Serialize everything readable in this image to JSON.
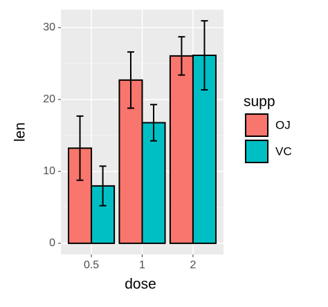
{
  "chart_data": {
    "type": "bar",
    "x_label": "dose",
    "y_label": "len",
    "legend_title": "supp",
    "legend_position": "right",
    "categories": [
      "0.5",
      "1",
      "2"
    ],
    "series": [
      {
        "name": "OJ",
        "color": "#f8766d",
        "values": [
          13.23,
          22.7,
          26.06
        ],
        "errors": [
          4.46,
          3.91,
          2.66
        ]
      },
      {
        "name": "VC",
        "color": "#00bfc4",
        "values": [
          7.98,
          16.77,
          26.14
        ],
        "errors": [
          2.75,
          2.52,
          4.8
        ]
      }
    ],
    "ylim": [
      -1.55,
      32.49
    ],
    "yticks": [
      0,
      10,
      20,
      30
    ],
    "grid": true
  }
}
